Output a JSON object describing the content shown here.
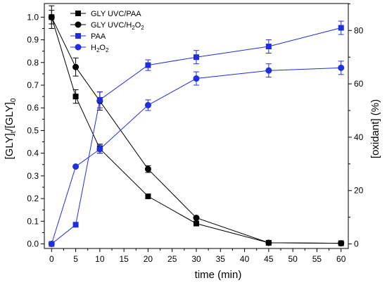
{
  "chart_data": {
    "type": "line",
    "xlabel": "time (min)",
    "ylabel_left": "[GLY]t/[GLY]0",
    "ylabel_right": "[oxidant] (%)",
    "x_ticks": [
      0,
      5,
      10,
      15,
      20,
      25,
      30,
      35,
      40,
      45,
      50,
      55,
      60
    ],
    "y_left_ticks": [
      0.0,
      0.1,
      0.2,
      0.3,
      0.4,
      0.5,
      0.6,
      0.7,
      0.8,
      0.9,
      1.0
    ],
    "y_right_ticks": [
      0,
      20,
      40,
      60,
      80
    ],
    "xlim": [
      -1.5,
      61.5
    ],
    "y_left_lim": [
      -0.02,
      1.06
    ],
    "y_right_lim": [
      -1.7,
      90.1
    ],
    "grid": false,
    "legend_position": "top-left",
    "colors": {
      "black": "#000000",
      "blue": "#1f2fdd"
    },
    "series": [
      {
        "name": "GLY UVC/PAA",
        "axis": "left",
        "marker": "square",
        "color": "#000000",
        "x": [
          0,
          5,
          10,
          20,
          30,
          45,
          60
        ],
        "y": [
          1.0,
          0.65,
          0.42,
          0.21,
          0.09,
          0.005,
          0.003
        ],
        "err": [
          0.03,
          0.03,
          0.02,
          0.0,
          0.0,
          0.0,
          0.0
        ]
      },
      {
        "name": "GLY UVC/H2O2",
        "axis": "left",
        "marker": "circle",
        "color": "#000000",
        "x": [
          0,
          5,
          10,
          20,
          30,
          45,
          60
        ],
        "y": [
          1.0,
          0.78,
          0.63,
          0.33,
          0.115,
          0.005,
          0.003
        ],
        "err": [
          0.05,
          0.04,
          0.04,
          0.015,
          0.0,
          0.0,
          0.0
        ]
      },
      {
        "name": "PAA",
        "axis": "right",
        "marker": "square",
        "color": "#1f2fdd",
        "x": [
          0,
          5,
          10,
          20,
          30,
          45,
          60
        ],
        "y": [
          0,
          7.2,
          54.0,
          67.0,
          70.0,
          74.0,
          81.0
        ],
        "err": [
          0,
          0,
          3.0,
          2.0,
          2.5,
          2.5,
          2.5
        ]
      },
      {
        "name": "H2O2",
        "axis": "right",
        "marker": "circle",
        "color": "#1f2fdd",
        "x": [
          0,
          5,
          10,
          20,
          30,
          45,
          60
        ],
        "y": [
          0,
          29.0,
          35.5,
          52.0,
          62.0,
          65.0,
          66.0
        ],
        "err": [
          0,
          0,
          1.5,
          2.0,
          2.5,
          2.5,
          2.5
        ]
      }
    ]
  }
}
